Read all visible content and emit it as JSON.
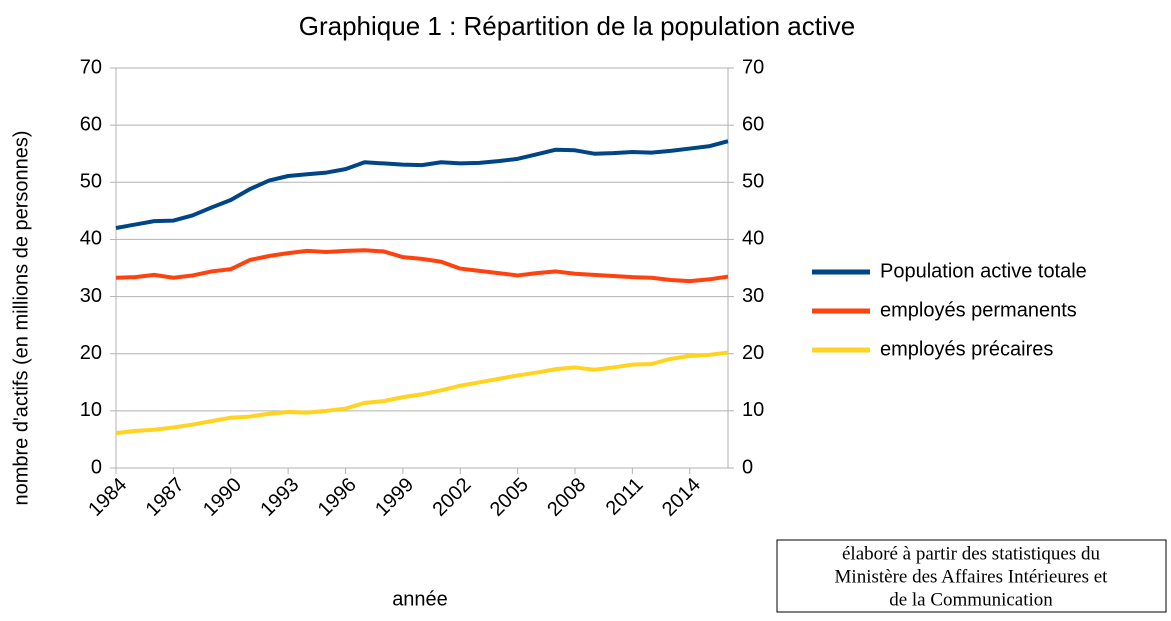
{
  "chart_data": {
    "type": "line",
    "title": "Graphique 1 : Répartition de la population active",
    "x_label": "année",
    "y_label": "nombre d'actifs (en millions de personnes)",
    "categories": [
      "1984",
      null,
      null,
      "1987",
      null,
      null,
      "1990",
      null,
      null,
      "1993",
      null,
      null,
      "1996",
      null,
      null,
      "1999",
      null,
      null,
      "2002",
      null,
      null,
      "2005",
      null,
      null,
      "2008",
      null,
      null,
      "2011",
      null,
      null,
      "2014",
      null,
      null
    ],
    "series": [
      {
        "name": "Population active totale",
        "color": "#004586",
        "values": [
          42,
          42.6,
          43.2,
          43.3,
          44.2,
          45.6,
          46.9,
          48.8,
          50.3,
          51.1,
          51.4,
          51.7,
          52.3,
          53.5,
          53.3,
          53.1,
          53.0,
          53.5,
          53.3,
          53.4,
          53.7,
          54.1,
          54.9,
          55.7,
          55.6,
          55.0,
          55.1,
          55.3,
          55.2,
          55.5,
          55.9,
          56.3,
          57.2
        ]
      },
      {
        "name": "employés permanents",
        "color": "#ff420e",
        "values": [
          33.3,
          33.4,
          33.8,
          33.3,
          33.7,
          34.4,
          34.8,
          36.4,
          37.1,
          37.6,
          38.0,
          37.8,
          38.0,
          38.1,
          37.9,
          36.9,
          36.6,
          36.1,
          34.9,
          34.5,
          34.1,
          33.7,
          34.1,
          34.4,
          34.0,
          33.8,
          33.6,
          33.4,
          33.3,
          32.9,
          32.7,
          33.0,
          33.5
        ]
      },
      {
        "name": "employés précaires",
        "color": "#ffd320",
        "values": [
          6.1,
          6.5,
          6.7,
          7.1,
          7.6,
          8.2,
          8.8,
          9.0,
          9.5,
          9.8,
          9.7,
          10.0,
          10.4,
          11.4,
          11.7,
          12.4,
          12.9,
          13.6,
          14.4,
          15.0,
          15.6,
          16.2,
          16.7,
          17.3,
          17.6,
          17.2,
          17.6,
          18.1,
          18.2,
          19.1,
          19.6,
          19.8,
          20.2
        ]
      }
    ],
    "ylim": [
      0,
      70
    ],
    "yticks": [
      0,
      10,
      20,
      30,
      40,
      50,
      60,
      70
    ],
    "y2lim": [
      0,
      70
    ],
    "y2ticks": [
      0,
      10,
      20,
      30,
      40,
      50,
      60,
      70
    ],
    "grid": true,
    "legend": "right",
    "note": [
      "élaboré à partir des statistiques du",
      "Ministère des Affaires Intérieures et",
      "de la Communication"
    ]
  }
}
